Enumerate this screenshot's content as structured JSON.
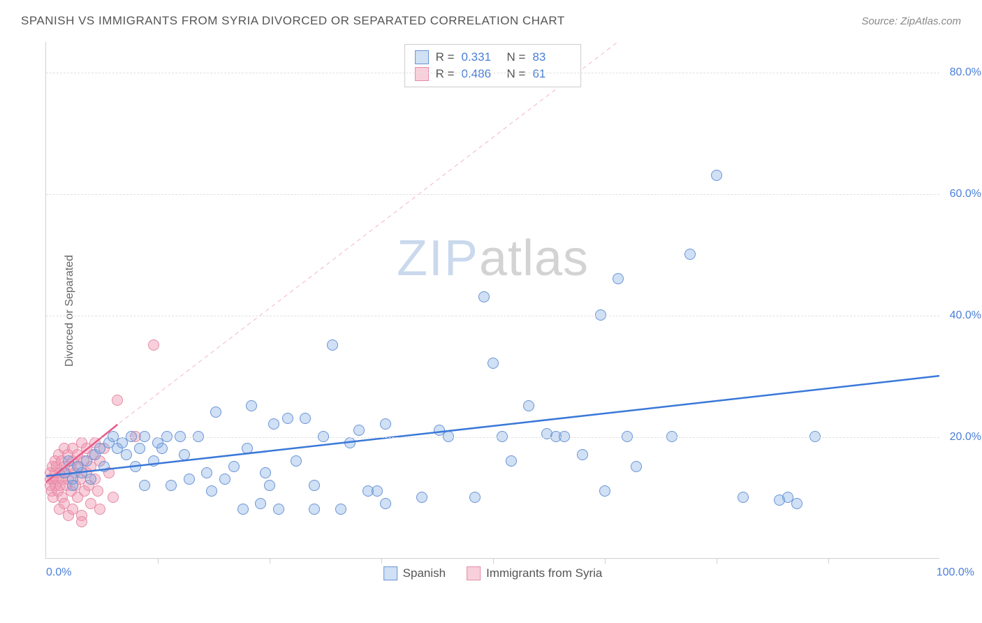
{
  "title": "SPANISH VS IMMIGRANTS FROM SYRIA DIVORCED OR SEPARATED CORRELATION CHART",
  "source": "Source: ZipAtlas.com",
  "y_axis_label": "Divorced or Separated",
  "watermark": {
    "zip": "ZIP",
    "atlas": "atlas"
  },
  "chart": {
    "type": "scatter",
    "xlim": [
      0,
      100
    ],
    "ylim": [
      0,
      85
    ],
    "x_tick_labels": {
      "left": "0.0%",
      "right": "100.0%"
    },
    "x_ticks": [
      12.5,
      25,
      37.5,
      50,
      62.5,
      75,
      87.5
    ],
    "y_gridlines": [
      20,
      40,
      60,
      80
    ],
    "y_tick_labels": [
      "20.0%",
      "40.0%",
      "60.0%",
      "80.0%"
    ],
    "background_color": "#ffffff",
    "grid_color": "#e0e0e0",
    "axis_color": "#d0d0d0",
    "tick_label_color": "#4a7fd8",
    "marker_radius": 8,
    "marker_stroke_width": 1.2,
    "series": [
      {
        "name": "Spanish",
        "fill": "rgba(120,165,225,0.35)",
        "stroke": "#6a94d4",
        "r_value": "0.331",
        "n_value": "83",
        "trend": {
          "x1": 0,
          "y1": 13.5,
          "x2": 100,
          "y2": 30,
          "color": "#3a78d8",
          "width": 2.5,
          "dash": "none"
        },
        "points": [
          [
            2,
            14
          ],
          [
            2.5,
            16
          ],
          [
            3,
            13
          ],
          [
            3,
            12
          ],
          [
            3.5,
            15
          ],
          [
            4,
            14
          ],
          [
            4.5,
            16
          ],
          [
            5,
            13
          ],
          [
            5.5,
            17
          ],
          [
            6,
            18
          ],
          [
            6.5,
            15
          ],
          [
            7,
            19
          ],
          [
            7.5,
            20
          ],
          [
            8,
            18
          ],
          [
            8.5,
            19
          ],
          [
            9,
            17
          ],
          [
            9.5,
            20
          ],
          [
            10,
            15
          ],
          [
            10.5,
            18
          ],
          [
            11,
            20
          ],
          [
            11,
            12
          ],
          [
            12,
            16
          ],
          [
            12.5,
            19
          ],
          [
            13,
            18
          ],
          [
            13.5,
            20
          ],
          [
            14,
            12
          ],
          [
            15,
            20
          ],
          [
            15.5,
            17
          ],
          [
            16,
            13
          ],
          [
            17,
            20
          ],
          [
            18,
            14
          ],
          [
            18.5,
            11
          ],
          [
            19,
            24
          ],
          [
            20,
            13
          ],
          [
            21,
            15
          ],
          [
            22,
            8
          ],
          [
            22.5,
            18
          ],
          [
            23,
            25
          ],
          [
            24,
            9
          ],
          [
            24.5,
            14
          ],
          [
            25,
            12
          ],
          [
            25.5,
            22
          ],
          [
            26,
            8
          ],
          [
            27,
            23
          ],
          [
            28,
            16
          ],
          [
            29,
            23
          ],
          [
            30,
            12
          ],
          [
            30,
            8
          ],
          [
            31,
            20
          ],
          [
            32,
            35
          ],
          [
            33,
            8
          ],
          [
            34,
            19
          ],
          [
            35,
            21
          ],
          [
            36,
            11
          ],
          [
            37,
            11
          ],
          [
            38,
            9
          ],
          [
            38,
            22
          ],
          [
            42,
            10
          ],
          [
            44,
            21
          ],
          [
            45,
            20
          ],
          [
            48,
            10
          ],
          [
            49,
            43
          ],
          [
            50,
            32
          ],
          [
            51,
            20
          ],
          [
            52,
            16
          ],
          [
            54,
            25
          ],
          [
            56,
            20.5
          ],
          [
            57,
            20
          ],
          [
            58,
            20
          ],
          [
            60,
            17
          ],
          [
            62,
            40
          ],
          [
            62.5,
            11
          ],
          [
            64,
            46
          ],
          [
            65,
            20
          ],
          [
            66,
            15
          ],
          [
            70,
            20
          ],
          [
            72,
            50
          ],
          [
            75,
            63
          ],
          [
            78,
            10
          ],
          [
            82,
            9.5
          ],
          [
            83,
            10
          ],
          [
            84,
            9
          ],
          [
            86,
            20
          ]
        ]
      },
      {
        "name": "Immigrants from Syria",
        "fill": "rgba(240,150,175,0.45)",
        "stroke": "#e58ba8",
        "r_value": "0.486",
        "n_value": "61",
        "trend": {
          "x1": 0,
          "y1": 12.5,
          "x2": 8,
          "y2": 22,
          "color": "#e85a8a",
          "width": 2.5,
          "dash": "none"
        },
        "diagonal": {
          "x1": 0,
          "y1": 13,
          "x2": 64,
          "y2": 85,
          "color": "#f5b5c5",
          "width": 1,
          "dash": "6,5"
        },
        "points": [
          [
            0.5,
            12
          ],
          [
            0.5,
            13
          ],
          [
            0.5,
            14
          ],
          [
            0.6,
            11
          ],
          [
            0.7,
            15
          ],
          [
            0.8,
            13
          ],
          [
            0.8,
            10
          ],
          [
            1,
            14
          ],
          [
            1,
            12
          ],
          [
            1,
            16
          ],
          [
            1.2,
            13
          ],
          [
            1.2,
            15
          ],
          [
            1.3,
            11
          ],
          [
            1.4,
            17
          ],
          [
            1.5,
            14
          ],
          [
            1.5,
            8
          ],
          [
            1.6,
            12
          ],
          [
            1.7,
            16
          ],
          [
            1.8,
            13
          ],
          [
            1.8,
            10
          ],
          [
            2,
            15
          ],
          [
            2,
            18
          ],
          [
            2,
            9
          ],
          [
            2.2,
            14
          ],
          [
            2.3,
            12
          ],
          [
            2.4,
            17
          ],
          [
            2.5,
            13
          ],
          [
            2.5,
            7
          ],
          [
            2.7,
            15
          ],
          [
            2.8,
            11
          ],
          [
            3,
            16
          ],
          [
            3,
            8
          ],
          [
            3,
            18
          ],
          [
            3.2,
            14
          ],
          [
            3.3,
            12
          ],
          [
            3.5,
            17
          ],
          [
            3.5,
            10
          ],
          [
            3.7,
            15
          ],
          [
            3.8,
            13
          ],
          [
            4,
            19
          ],
          [
            4,
            7
          ],
          [
            4.2,
            16
          ],
          [
            4.3,
            11
          ],
          [
            4.5,
            18
          ],
          [
            4.5,
            14
          ],
          [
            4.8,
            12
          ],
          [
            5,
            15
          ],
          [
            5,
            9
          ],
          [
            5.2,
            17
          ],
          [
            5.5,
            13
          ],
          [
            5.5,
            19
          ],
          [
            5.8,
            11
          ],
          [
            6,
            16
          ],
          [
            6,
            8
          ],
          [
            6.5,
            18
          ],
          [
            7,
            14
          ],
          [
            7.5,
            10
          ],
          [
            8,
            26
          ],
          [
            10,
            20
          ],
          [
            12,
            35
          ],
          [
            4,
            6
          ]
        ]
      }
    ]
  },
  "stats_box": {
    "r_label": "R =",
    "n_label": "N ="
  },
  "legend": {
    "items": [
      "Spanish",
      "Immigrants from Syria"
    ]
  }
}
